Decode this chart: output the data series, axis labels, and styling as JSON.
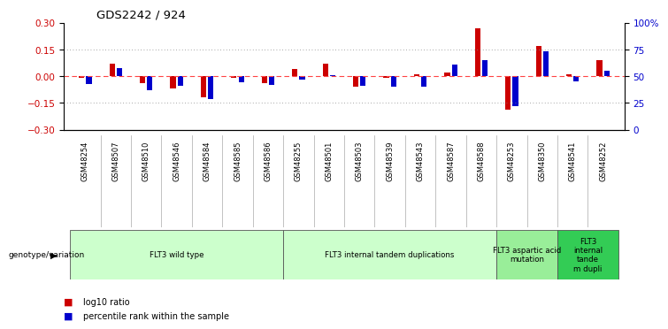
{
  "title": "GDS2242 / 924",
  "samples": [
    "GSM48254",
    "GSM48507",
    "GSM48510",
    "GSM48546",
    "GSM48584",
    "GSM48585",
    "GSM48586",
    "GSM48255",
    "GSM48501",
    "GSM48503",
    "GSM48539",
    "GSM48543",
    "GSM48587",
    "GSM48588",
    "GSM48253",
    "GSM48350",
    "GSM48541",
    "GSM48252"
  ],
  "log10_ratio": [
    -0.01,
    0.07,
    -0.04,
    -0.07,
    -0.12,
    -0.01,
    -0.04,
    0.04,
    0.07,
    -0.06,
    -0.01,
    0.01,
    0.02,
    0.27,
    -0.19,
    0.17,
    0.01,
    0.09
  ],
  "percentile_rank": [
    43,
    58,
    37,
    41,
    29,
    44,
    42,
    47,
    51,
    41,
    40,
    40,
    61,
    65,
    22,
    73,
    45,
    55
  ],
  "groups": [
    {
      "label": "FLT3 wild type",
      "start": 0,
      "end": 7,
      "color": "#ccffcc"
    },
    {
      "label": "FLT3 internal tandem duplications",
      "start": 7,
      "end": 14,
      "color": "#ccffcc"
    },
    {
      "label": "FLT3 aspartic acid\nmutation",
      "start": 14,
      "end": 16,
      "color": "#99ee99"
    },
    {
      "label": "FLT3\ninternal\ntande\nm dupli",
      "start": 16,
      "end": 18,
      "color": "#33cc55"
    }
  ],
  "ylim_left": [
    -0.3,
    0.3
  ],
  "ylim_right": [
    0,
    100
  ],
  "yticks_left": [
    -0.3,
    -0.15,
    0.0,
    0.15,
    0.3
  ],
  "yticks_right": [
    0,
    25,
    50,
    75,
    100
  ],
  "ytick_labels_right": [
    "0",
    "25",
    "50",
    "75",
    "100%"
  ],
  "red_color": "#cc0000",
  "blue_color": "#0000cc",
  "zero_line_color": "#ff4444",
  "dotted_line_color": "#888888",
  "background_color": "#ffffff",
  "tick_label_color_left": "#cc0000",
  "tick_label_color_right": "#0000cc"
}
